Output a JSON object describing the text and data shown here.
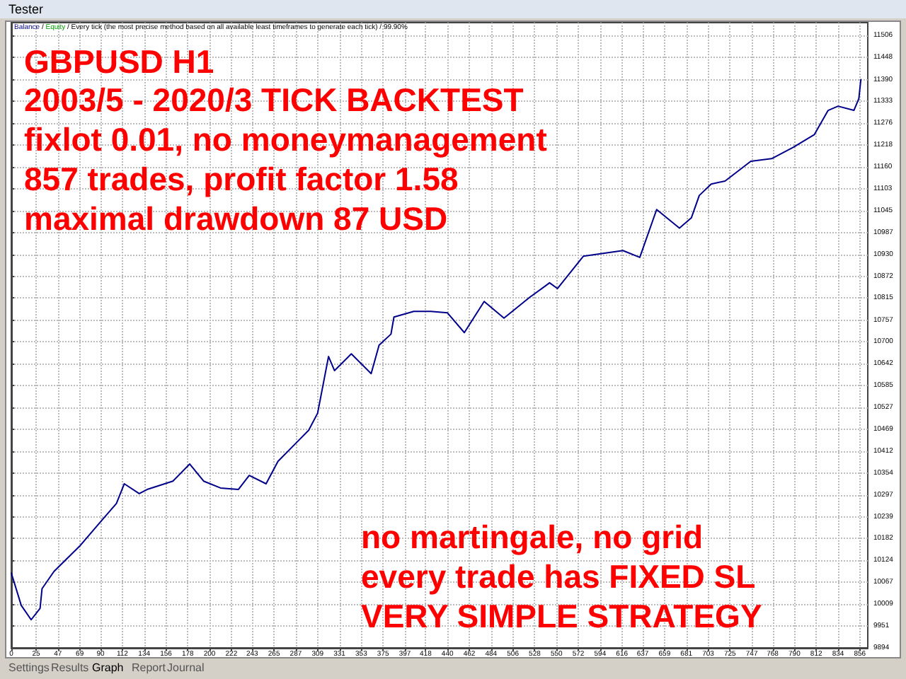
{
  "chart_data": {
    "type": "line",
    "title": "GBPUSD H1",
    "annotations": [
      "2003/5 - 2020/3 TICK BACKTEST",
      "fixlot 0.01, no moneymanagement",
      "857 trades, profit factor 1.58",
      "maximal drawdown 87 USD",
      "no martingale, no grid",
      "every trade has FIXED SL",
      "VERY SIMPLE STRATEGY",
      "/",
      "Equity",
      "/ Every tick (the most precise method based on all available least timeframes to generate each tick) / 99.90%",
      "Tester",
      "Settings",
      "Results",
      "Graph",
      "Report",
      "Journal"
    ],
    "x": [
      0,
      10,
      20,
      29,
      31,
      43,
      69,
      91,
      106,
      114,
      129,
      137,
      163,
      180,
      194,
      211,
      229,
      240,
      257,
      269,
      286,
      300,
      309,
      320,
      326,
      343,
      363,
      371,
      383,
      386,
      406,
      423,
      440,
      457,
      477,
      497,
      523,
      543,
      551,
      577,
      617,
      634,
      651,
      674,
      686,
      694,
      706,
      720,
      746,
      767,
      789,
      810,
      824,
      834,
      850,
      855,
      857
    ],
    "series": [
      {
        "name": "Balance",
        "color": "#00008b",
        "values": [
          10091,
          10006,
          9968,
          9998,
          10050,
          10095,
          10162,
          10229,
          10274,
          10326,
          10300,
          10311,
          10333,
          10378,
          10333,
          10315,
          10311,
          10348,
          10326,
          10385,
          10430,
          10467,
          10512,
          10661,
          10624,
          10668,
          10616,
          10691,
          10720,
          10765,
          10780,
          10780,
          10776,
          10724,
          10806,
          10762,
          10817,
          10855,
          10840,
          10925,
          10940,
          10922,
          11048,
          10999,
          11026,
          11085,
          11115,
          11123,
          11175,
          11182,
          11212,
          11245,
          11309,
          11320,
          11309,
          11340,
          11390
        ]
      }
    ],
    "xlim": [
      0,
      864
    ],
    "xticks": [
      0,
      25,
      47,
      69,
      90,
      112,
      134,
      156,
      178,
      200,
      222,
      243,
      265,
      287,
      309,
      331,
      353,
      375,
      397,
      418,
      440,
      462,
      484,
      506,
      528,
      550,
      572,
      594,
      616,
      637,
      659,
      681,
      703,
      725,
      747,
      768,
      790,
      812,
      834,
      856
    ],
    "ylim": [
      9894,
      11540
    ],
    "yticks": [
      9894,
      9951,
      10009,
      10067,
      10124,
      10182,
      10239,
      10297,
      10354,
      10412,
      10469,
      10527,
      10585,
      10642,
      10700,
      10757,
      10815,
      10872,
      10930,
      10987,
      11045,
      11103,
      11160,
      11218,
      11276,
      11333,
      11390,
      11448,
      11506
    ],
    "grid": true,
    "legend": "top left",
    "marker": "none",
    "line_style": "solid"
  }
}
